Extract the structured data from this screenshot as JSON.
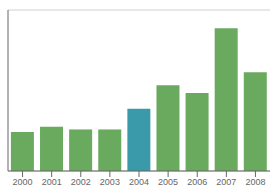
{
  "chart_data": {
    "type": "bar",
    "categories": [
      "2000",
      "2001",
      "2002",
      "2003",
      "2004",
      "2005",
      "2006",
      "2007",
      "2008"
    ],
    "values": [
      15,
      17,
      16,
      16,
      24,
      33,
      30,
      55,
      38
    ],
    "colors": [
      "#6aaa5e",
      "#6aaa5e",
      "#6aaa5e",
      "#6aaa5e",
      "#3a9aaa",
      "#6aaa5e",
      "#6aaa5e",
      "#6aaa5e",
      "#6aaa5e"
    ],
    "ylim": [
      0,
      62
    ],
    "yticks": [
      15,
      30,
      45,
      60
    ],
    "grid": true,
    "tick_labels": "x"
  }
}
